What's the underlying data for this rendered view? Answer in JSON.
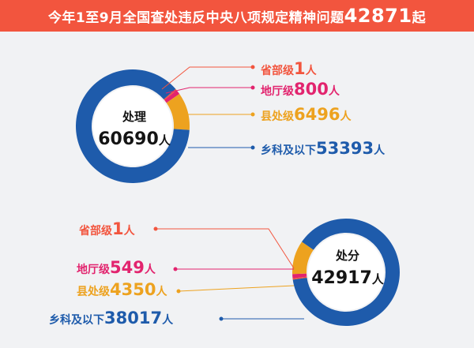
{
  "title": {
    "prefix": "今年1至9月全国查处违反中央八项规定精神问题",
    "total": "42871",
    "suffix": "起"
  },
  "colors": {
    "banner": "#f2553e",
    "provincial": "#f2553e",
    "prefectural": "#e2246e",
    "county": "#eda21f",
    "township": "#1e5bab"
  },
  "chart_data": [
    {
      "type": "pie",
      "title": "",
      "center_label": "处理",
      "center_value": "60690",
      "center_unit": "人",
      "unit": "人",
      "categories": [
        "省部级",
        "地厅级",
        "县处级",
        "乡科及以下"
      ],
      "values": [
        1,
        800,
        6496,
        53393
      ]
    },
    {
      "type": "pie",
      "title": "",
      "center_label": "处分",
      "center_value": "42917",
      "center_unit": "人",
      "unit": "人",
      "categories": [
        "省部级",
        "地厅级",
        "县处级",
        "乡科及以下"
      ],
      "values": [
        1,
        549,
        4350,
        38017
      ]
    }
  ]
}
